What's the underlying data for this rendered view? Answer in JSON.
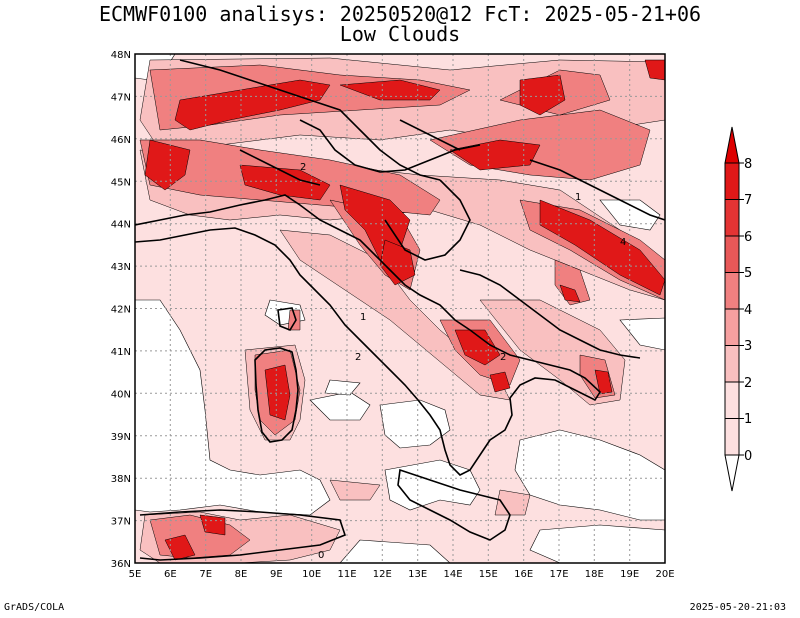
{
  "header": {
    "title_line1": "ECMWF0100 analisys: 20250520@12 FcT: 2025-05-21+06",
    "title_line2": "Low Clouds"
  },
  "map": {
    "lon_labels": [
      "5E",
      "6E",
      "7E",
      "8E",
      "9E",
      "10E",
      "11E",
      "12E",
      "13E",
      "14E",
      "15E",
      "16E",
      "17E",
      "18E",
      "19E",
      "20E"
    ],
    "lat_labels": [
      "48N",
      "47N",
      "46N",
      "45N",
      "44N",
      "43N",
      "42N",
      "41N",
      "40N",
      "39N",
      "38N",
      "37N",
      "36N"
    ],
    "contour_labels": [
      "2",
      "1",
      "2",
      "4",
      "1",
      "2",
      "0"
    ],
    "colors": {
      "frame": "#000000",
      "grid": "#999999",
      "sea": "#ffffff",
      "coast": "#000000"
    }
  },
  "colorbar": {
    "levels": [
      "0",
      "1",
      "2",
      "3",
      "4",
      "5",
      "6",
      "7",
      "8"
    ],
    "colors": [
      "#ffffff",
      "#fde0e0",
      "#f9c0c0",
      "#f6a0a0",
      "#f08080",
      "#e85858",
      "#e43434",
      "#e01818",
      "#dd0000"
    ]
  },
  "footer": {
    "left": "GrADS/COLA",
    "right": "2025-05-20-21:03"
  }
}
